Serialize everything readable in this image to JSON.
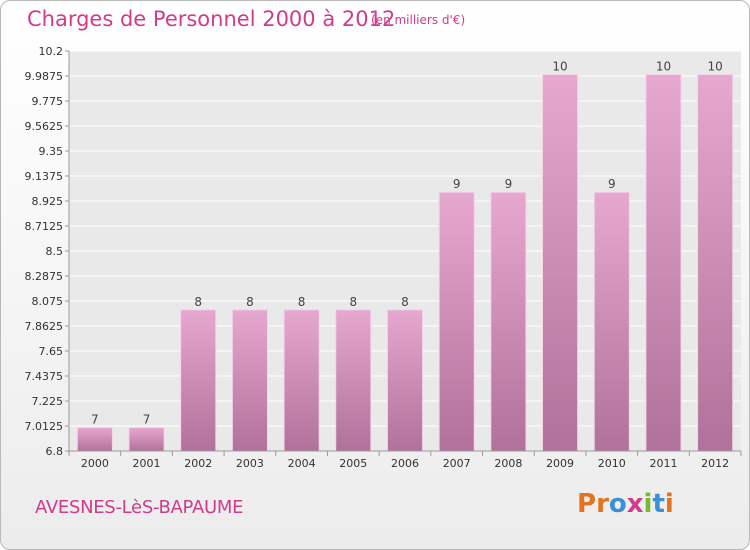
{
  "header": {
    "title": "Charges de Personnel 2000 à 2012",
    "subtitle": "(en milliers d'€)"
  },
  "footer": {
    "commune": "AVESNES-LèS-BAPAUME",
    "logo_text": "Proxiti"
  },
  "colors": {
    "title": "#d03c8a",
    "bar_top": "#e6a8cf",
    "bar_bottom": "#b0729a",
    "plot_background": "#e9e9e9",
    "grid": "#ffffff"
  },
  "chart_data": {
    "type": "bar",
    "title": "Charges de Personnel 2000 à 2012",
    "subtitle": "(en milliers d'€)",
    "xlabel": "",
    "ylabel": "",
    "categories": [
      "2000",
      "2001",
      "2002",
      "2003",
      "2004",
      "2005",
      "2006",
      "2007",
      "2008",
      "2009",
      "2010",
      "2011",
      "2012"
    ],
    "values": [
      7,
      7,
      8,
      8,
      8,
      8,
      8,
      9,
      9,
      10,
      9,
      10,
      10
    ],
    "data_labels": [
      "7",
      "7",
      "8",
      "8",
      "8",
      "8",
      "8",
      "9",
      "9",
      "10",
      "9",
      "10",
      "10"
    ],
    "ylim": [
      6.8,
      10.2
    ],
    "yticks": [
      "6.8",
      "7.0125",
      "7.225",
      "7.4375",
      "7.65",
      "7.8625",
      "8.075",
      "8.2875",
      "8.5",
      "8.7125",
      "8.925",
      "9.1375",
      "9.35",
      "9.5625",
      "9.775",
      "9.9875",
      "10.2"
    ],
    "grid": true,
    "legend": "none"
  }
}
